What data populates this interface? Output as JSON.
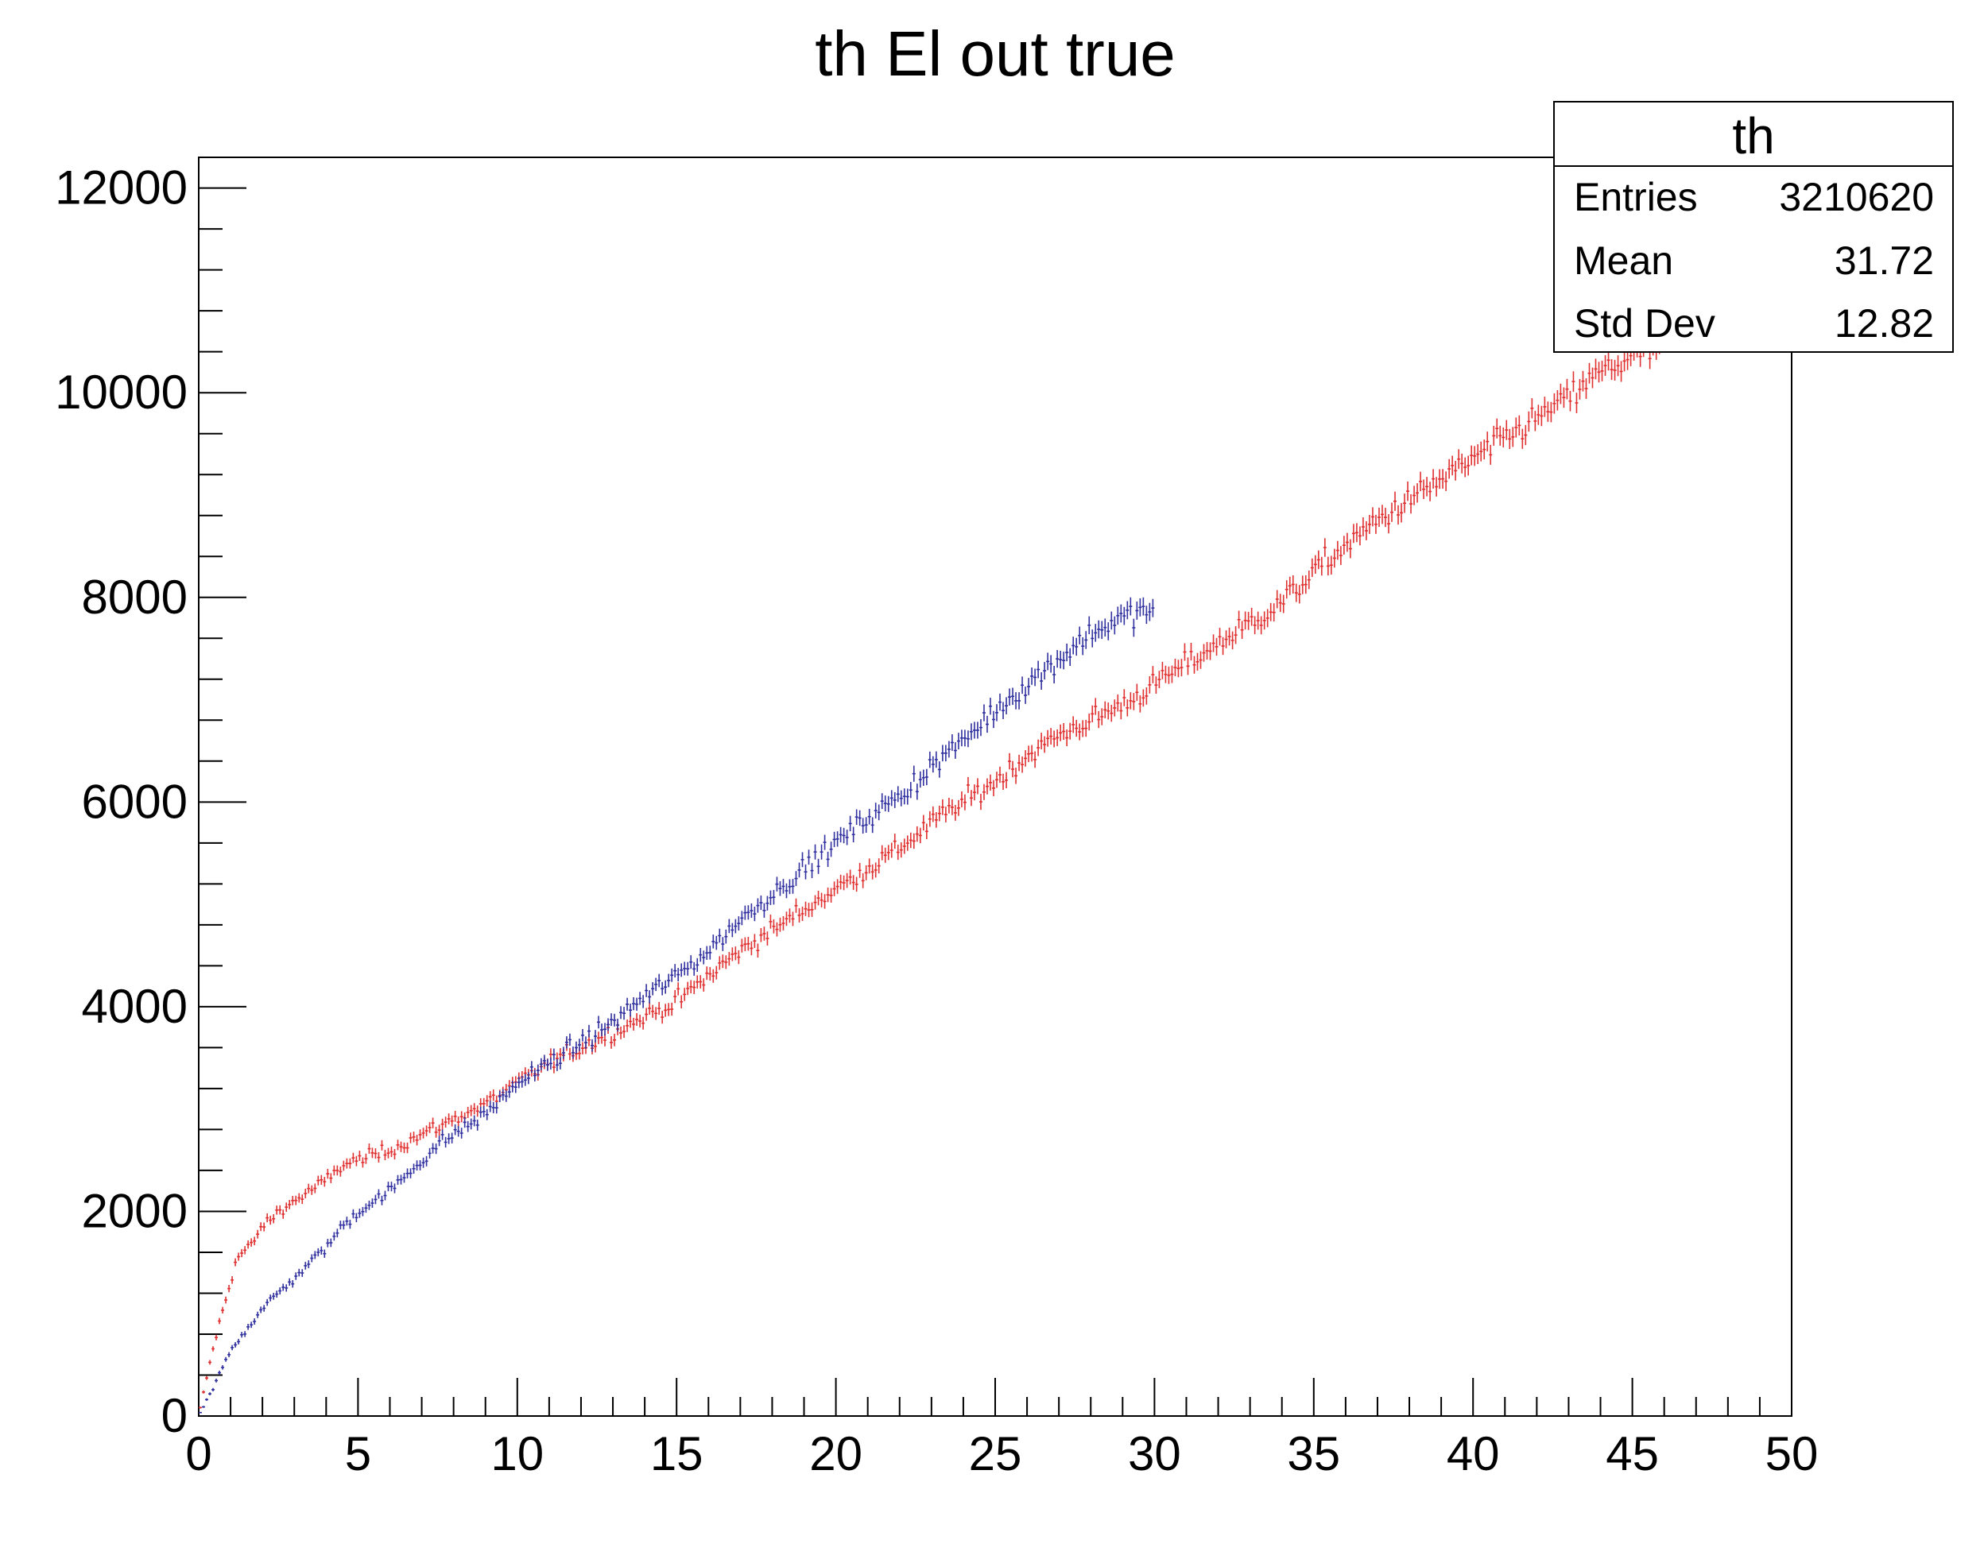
{
  "chart_data": {
    "type": "scatter",
    "title": "th El out true",
    "xlabel": "",
    "ylabel": "",
    "xlim": [
      0,
      50
    ],
    "ylim": [
      0,
      12300
    ],
    "x_ticks": [
      0,
      5,
      10,
      15,
      20,
      25,
      30,
      35,
      40,
      45,
      50
    ],
    "y_ticks": [
      0,
      2000,
      4000,
      6000,
      8000,
      10000,
      12000
    ],
    "grid": false,
    "error_bars": true,
    "stats_box": {
      "title": "th",
      "rows": [
        {
          "label": "Entries",
          "value": "3210620"
        },
        {
          "label": "Mean",
          "value": "31.72"
        },
        {
          "label": "Std Dev",
          "value": "12.82"
        }
      ]
    },
    "series": [
      {
        "color": "#e03030",
        "bin_width": 0.1,
        "x_range": [
          0,
          46
        ],
        "anchor_points": [
          [
            0.0,
            0
          ],
          [
            0.3,
            450
          ],
          [
            0.6,
            850
          ],
          [
            0.9,
            1200
          ],
          [
            1.2,
            1550
          ],
          [
            1.6,
            1650
          ],
          [
            2.0,
            1850
          ],
          [
            2.5,
            2000
          ],
          [
            3.0,
            2100
          ],
          [
            3.5,
            2200
          ],
          [
            4.0,
            2300
          ],
          [
            4.5,
            2450
          ],
          [
            5.0,
            2500
          ],
          [
            6.0,
            2600
          ],
          [
            7.0,
            2750
          ],
          [
            8.0,
            2900
          ],
          [
            9.0,
            3050
          ],
          [
            10.0,
            3250
          ],
          [
            11.0,
            3450
          ],
          [
            12.0,
            3600
          ],
          [
            13.0,
            3750
          ],
          [
            14.0,
            3900
          ],
          [
            15.0,
            4050
          ],
          [
            16.0,
            4300
          ],
          [
            17.0,
            4550
          ],
          [
            18.0,
            4750
          ],
          [
            19.0,
            4950
          ],
          [
            20.0,
            5150
          ],
          [
            21.0,
            5350
          ],
          [
            22.0,
            5550
          ],
          [
            23.0,
            5800
          ],
          [
            24.0,
            6000
          ],
          [
            25.0,
            6200
          ],
          [
            26.0,
            6450
          ],
          [
            27.0,
            6650
          ],
          [
            28.0,
            6800
          ],
          [
            29.0,
            6950
          ],
          [
            30.0,
            7150
          ],
          [
            31.0,
            7350
          ],
          [
            32.0,
            7550
          ],
          [
            33.0,
            7750
          ],
          [
            34.0,
            7950
          ],
          [
            35.0,
            8250
          ],
          [
            36.0,
            8500
          ],
          [
            37.0,
            8750
          ],
          [
            38.0,
            8950
          ],
          [
            39.0,
            9150
          ],
          [
            40.0,
            9350
          ],
          [
            41.0,
            9550
          ],
          [
            42.0,
            9750
          ],
          [
            43.0,
            9950
          ],
          [
            44.0,
            10200
          ],
          [
            45.0,
            10350
          ],
          [
            46.0,
            10450
          ]
        ]
      },
      {
        "color": "#3030a0",
        "bin_width": 0.1,
        "x_range": [
          0,
          30
        ],
        "anchor_points": [
          [
            0.0,
            0
          ],
          [
            0.5,
            300
          ],
          [
            1.0,
            650
          ],
          [
            1.5,
            850
          ],
          [
            2.0,
            1050
          ],
          [
            2.5,
            1200
          ],
          [
            3.0,
            1350
          ],
          [
            3.5,
            1500
          ],
          [
            4.0,
            1650
          ],
          [
            4.5,
            1850
          ],
          [
            5.0,
            2000
          ],
          [
            5.5,
            2100
          ],
          [
            6.0,
            2200
          ],
          [
            6.5,
            2350
          ],
          [
            7.0,
            2500
          ],
          [
            7.5,
            2650
          ],
          [
            8.0,
            2750
          ],
          [
            8.5,
            2850
          ],
          [
            9.0,
            2950
          ],
          [
            9.5,
            3100
          ],
          [
            10.0,
            3250
          ],
          [
            11.0,
            3450
          ],
          [
            12.0,
            3650
          ],
          [
            13.0,
            3850
          ],
          [
            14.0,
            4100
          ],
          [
            15.0,
            4300
          ],
          [
            16.0,
            4550
          ],
          [
            17.0,
            4850
          ],
          [
            18.0,
            5100
          ],
          [
            19.0,
            5350
          ],
          [
            20.0,
            5600
          ],
          [
            21.0,
            5850
          ],
          [
            22.0,
            6050
          ],
          [
            23.0,
            6350
          ],
          [
            24.0,
            6600
          ],
          [
            25.0,
            6900
          ],
          [
            26.0,
            7150
          ],
          [
            27.0,
            7400
          ],
          [
            28.0,
            7650
          ],
          [
            29.0,
            7800
          ],
          [
            30.0,
            7900
          ]
        ]
      }
    ]
  }
}
